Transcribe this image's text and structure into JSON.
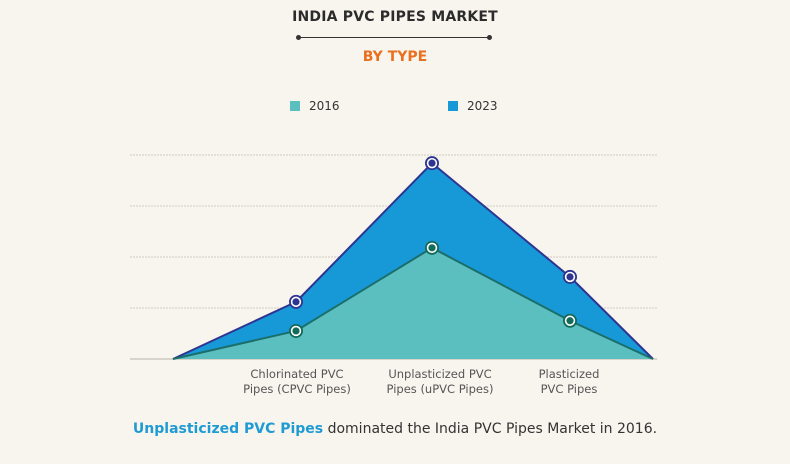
{
  "header": {
    "title": "INDIA PVC PIPES MARKET",
    "subtitle": "BY TYPE"
  },
  "colors": {
    "background": "#f8f5ee",
    "subtitle": "#e8701f",
    "series_2016_fill": "#5bbfc0",
    "series_2016_line": "#1b6e6a",
    "series_2016_marker": "#136b5a",
    "series_2023_fill": "#1799d8",
    "series_2023_line": "#2e3591",
    "series_2023_marker": "#2e3591",
    "highlight": "#1f9bd4",
    "grid": "#cfcac0"
  },
  "chart_data": {
    "type": "area",
    "title": "INDIA PVC PIPES MARKET",
    "subtitle": "BY TYPE",
    "xlabel": "",
    "ylabel": "",
    "categories": [
      "Chlorinated PVC Pipes (CPVC Pipes)",
      "Unplasticized PVC Pipes (uPVC Pipes)",
      "Plasticized PVC Pipes"
    ],
    "category_lines": [
      [
        "Chlorinated PVC",
        "Pipes (CPVC Pipes)"
      ],
      [
        "Unplasticized PVC",
        "Pipes (uPVC Pipes)"
      ],
      [
        "Plasticized",
        "PVC Pipes"
      ]
    ],
    "series": [
      {
        "name": "2016",
        "values": [
          0.55,
          2.18,
          0.75
        ]
      },
      {
        "name": "2023",
        "values": [
          1.12,
          3.84,
          1.61
        ]
      }
    ],
    "ylim": [
      0,
      4
    ],
    "y_ticks_shown": false,
    "grid": true,
    "gridlines": [
      1,
      2,
      3,
      4
    ],
    "area_starts_and_ends_at_zero": true,
    "legend": {
      "position": "top-center",
      "entries": [
        "2016",
        "2023"
      ]
    }
  },
  "footer": {
    "highlight": "Unplasticized PVC Pipes",
    "rest": " dominated the India PVC Pipes Market in 2016."
  }
}
